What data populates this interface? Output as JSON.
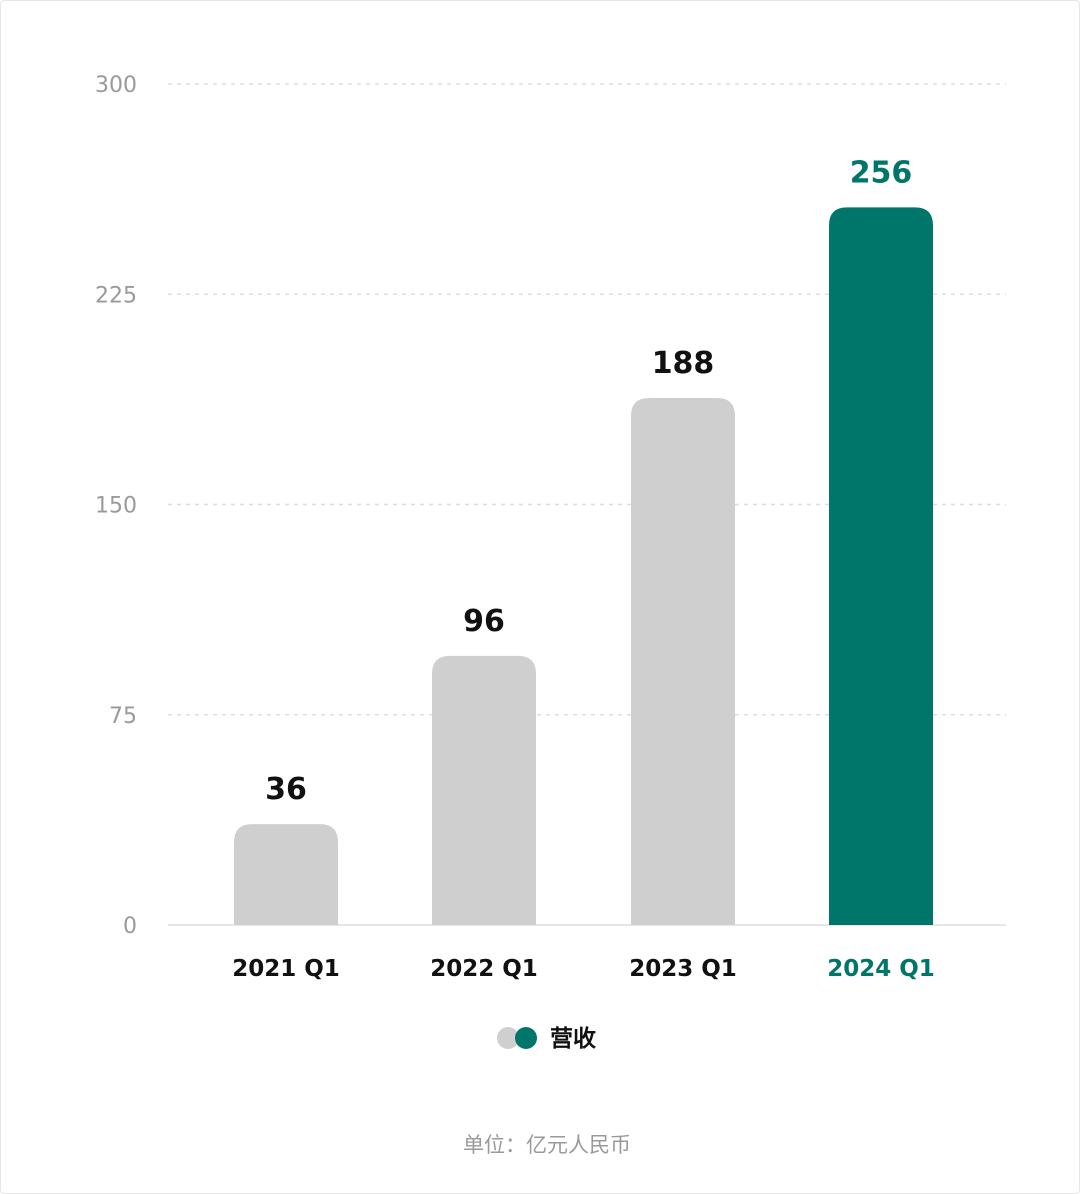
{
  "chart_data": {
    "type": "bar",
    "categories": [
      "2021 Q1",
      "2022 Q1",
      "2023 Q1",
      "2024 Q1"
    ],
    "series": [
      {
        "name": "营收",
        "values": [
          36,
          96,
          188,
          256
        ]
      }
    ],
    "ylim": [
      0,
      300
    ],
    "yticks": [
      0,
      75,
      150,
      225,
      300
    ],
    "grid": true,
    "legend": "bottom-center",
    "highlight_category": "2024 Q1",
    "unit_note": "单位：亿元人民币"
  },
  "colors": {
    "bar_default": "#cfcfcf",
    "bar_highlight": "#00766b",
    "label_default": "#111111",
    "label_highlight": "#00766b",
    "axis_text": "#9a9a9a",
    "grid": "#dedede"
  }
}
